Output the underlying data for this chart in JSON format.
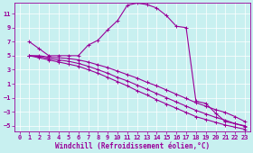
{
  "xlabel": "Windchill (Refroidissement éolien,°C)",
  "bg_color": "#c8f0f0",
  "grid_color": "#ffffff",
  "line_color": "#990099",
  "xlim": [
    -0.5,
    23.5
  ],
  "ylim": [
    -5.8,
    12.5
  ],
  "xticks": [
    0,
    1,
    2,
    3,
    4,
    5,
    6,
    7,
    8,
    9,
    10,
    11,
    12,
    13,
    14,
    15,
    16,
    17,
    18,
    19,
    20,
    21,
    22,
    23
  ],
  "yticks": [
    -5,
    -3,
    -1,
    1,
    3,
    5,
    7,
    9,
    11
  ],
  "curve1_x": [
    1,
    2,
    3,
    4,
    5,
    6,
    7,
    8,
    9,
    10,
    11,
    12,
    13,
    14,
    15,
    16,
    17,
    18,
    19,
    20,
    21,
    22,
    23
  ],
  "curve1_y": [
    7.0,
    6.0,
    5.0,
    5.0,
    5.0,
    5.0,
    6.5,
    7.2,
    8.7,
    10.0,
    12.2,
    12.5,
    12.3,
    11.8,
    10.7,
    9.2,
    9.0,
    -1.5,
    -1.8,
    -3.2,
    -4.4,
    -4.7,
    -5.0
  ],
  "curve2_x": [
    1,
    2,
    3,
    4,
    5,
    6,
    7,
    8,
    9,
    10,
    11,
    12,
    13,
    14,
    15,
    16,
    17,
    18,
    19,
    20,
    21,
    22,
    23
  ],
  "curve2_y": [
    5.0,
    5.0,
    4.8,
    4.7,
    4.6,
    4.4,
    4.1,
    3.7,
    3.3,
    2.8,
    2.3,
    1.8,
    1.2,
    0.7,
    0.1,
    -0.5,
    -1.1,
    -1.7,
    -2.2,
    -2.7,
    -3.1,
    -3.7,
    -4.4
  ],
  "curve3_x": [
    1,
    2,
    3,
    4,
    5,
    6,
    7,
    8,
    9,
    10,
    11,
    12,
    13,
    14,
    15,
    16,
    17,
    18,
    19,
    20,
    21,
    22,
    23
  ],
  "curve3_y": [
    5.0,
    4.9,
    4.6,
    4.4,
    4.2,
    3.9,
    3.5,
    3.0,
    2.5,
    1.9,
    1.4,
    0.8,
    0.2,
    -0.4,
    -1.0,
    -1.6,
    -2.2,
    -2.8,
    -3.3,
    -3.8,
    -4.2,
    -4.7,
    -5.1
  ],
  "curve4_x": [
    1,
    2,
    3,
    4,
    5,
    6,
    7,
    8,
    9,
    10,
    11,
    12,
    13,
    14,
    15,
    16,
    17,
    18,
    19,
    20,
    21,
    22,
    23
  ],
  "curve4_y": [
    5.0,
    4.7,
    4.4,
    4.1,
    3.8,
    3.5,
    3.0,
    2.5,
    1.9,
    1.3,
    0.7,
    0.0,
    -0.6,
    -1.3,
    -1.9,
    -2.5,
    -3.1,
    -3.7,
    -4.1,
    -4.5,
    -4.9,
    -5.2,
    -5.5
  ],
  "marker": "+",
  "markersize": 3,
  "linewidth": 0.8,
  "tick_fontsize": 5.0,
  "label_fontsize": 5.5
}
